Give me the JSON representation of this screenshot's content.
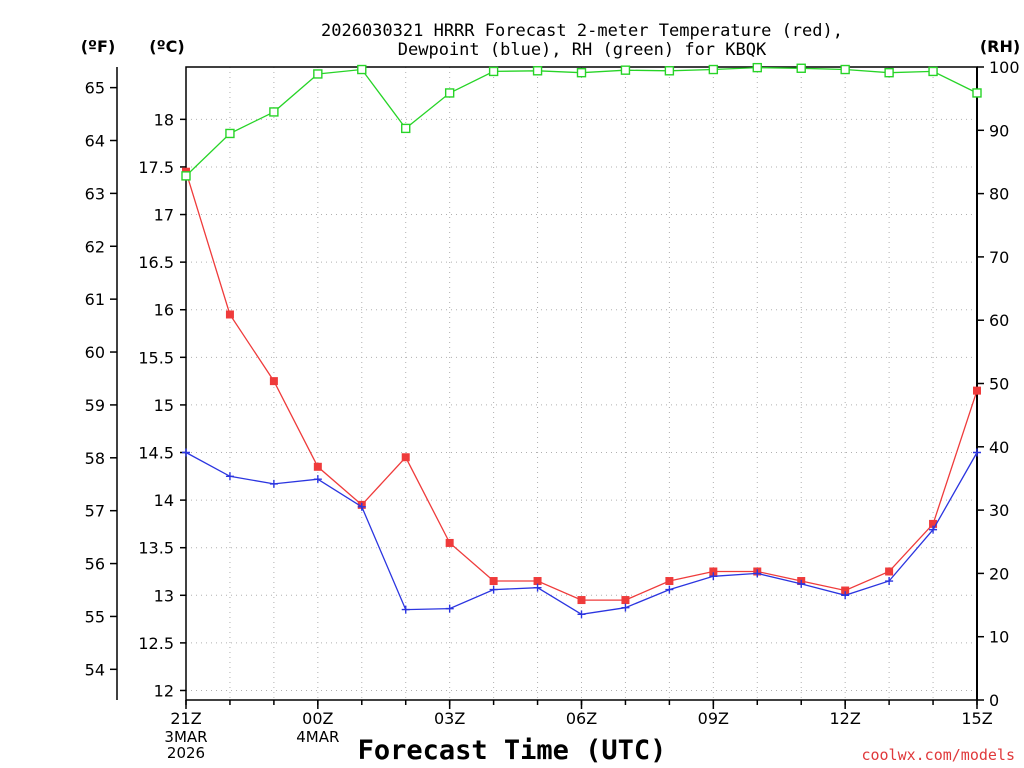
{
  "chart_data": {
    "type": "line",
    "title_line1": "2026030321 HRRR Forecast 2-meter Temperature (red),",
    "title_line2": "Dewpoint (blue), RH (green) for KBQK",
    "xlabel": "Forecast Time (UTC)",
    "credit": "coolwx.com/models",
    "unit_f": "(ºF)",
    "unit_c": "(ºC)",
    "unit_rh": "(RH)",
    "hours": [
      0,
      1,
      2,
      3,
      4,
      5,
      6,
      7,
      8,
      9,
      10,
      11,
      12,
      13,
      14,
      15,
      16,
      17,
      18
    ],
    "x_ticks": [
      {
        "hour": 0,
        "label": "21Z",
        "date": [
          "3MAR",
          "2026"
        ]
      },
      {
        "hour": 3,
        "label": "00Z",
        "date": [
          "4MAR"
        ]
      },
      {
        "hour": 6,
        "label": "03Z",
        "date": []
      },
      {
        "hour": 9,
        "label": "06Z",
        "date": []
      },
      {
        "hour": 12,
        "label": "09Z",
        "date": []
      },
      {
        "hour": 15,
        "label": "12Z",
        "date": []
      },
      {
        "hour": 18,
        "label": "15Z",
        "date": []
      }
    ],
    "celsius_range": [
      11.9,
      18.55
    ],
    "celsius_ticks": [
      "12",
      "12.5",
      "13",
      "13.5",
      "14",
      "14.5",
      "15",
      "15.5",
      "16",
      "16.5",
      "17",
      "17.5",
      "18"
    ],
    "fahrenheit_ticks": [
      "54",
      "55",
      "56",
      "57",
      "58",
      "59",
      "60",
      "61",
      "62",
      "63",
      "64",
      "65"
    ],
    "rh_range": [
      0,
      100
    ],
    "rh_ticks": [
      "0",
      "10",
      "20",
      "30",
      "40",
      "50",
      "60",
      "70",
      "80",
      "90",
      "100"
    ],
    "series": [
      {
        "name": "Temperature",
        "axis": "celsius",
        "color": "#ef3b3b",
        "marker": "filled-square",
        "values": [
          17.45,
          15.95,
          15.25,
          14.35,
          13.95,
          14.45,
          13.55,
          13.15,
          13.15,
          12.95,
          12.95,
          13.15,
          13.25,
          13.25,
          13.15,
          13.05,
          13.25,
          13.75,
          15.15
        ]
      },
      {
        "name": "Dewpoint",
        "axis": "celsius",
        "color": "#2b35e0",
        "marker": "plus",
        "values": [
          14.5,
          14.25,
          14.17,
          14.22,
          13.93,
          12.85,
          12.86,
          13.06,
          13.08,
          12.8,
          12.87,
          13.06,
          13.2,
          13.23,
          13.12,
          13.0,
          13.15,
          13.69,
          14.5
        ]
      },
      {
        "name": "RH",
        "axis": "rh",
        "color": "#27d427",
        "marker": "open-square",
        "values": [
          82.8,
          89.5,
          92.9,
          98.9,
          99.6,
          90.3,
          95.9,
          99.3,
          99.4,
          99.1,
          99.5,
          99.4,
          99.6,
          99.9,
          99.8,
          99.6,
          99.1,
          99.3,
          95.9
        ]
      }
    ]
  }
}
